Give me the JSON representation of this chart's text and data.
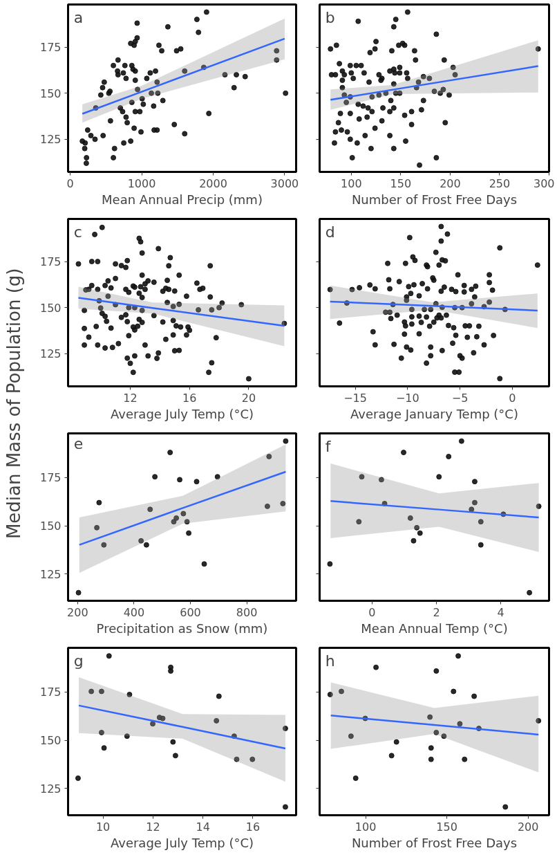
{
  "chart_data": [
    {
      "type": "scatter",
      "annotations": [
        "a"
      ],
      "xlabel": "Mean Annual Precip (mm)",
      "ylabel": "Median Mass of Population (g)",
      "xlim": [
        -30,
        3160
      ],
      "xticks": [
        0,
        1000,
        2000,
        3000
      ],
      "ylim": [
        107.3,
        198.1
      ],
      "yticks": [
        125,
        150,
        175
      ],
      "grid": false,
      "marker": "circle",
      "series": [
        {
          "color": "#111111",
          "x": [
            170,
            203,
            228,
            225,
            209,
            244,
            289,
            347,
            460,
            428,
            453,
            476,
            540,
            556,
            563,
            604,
            620,
            604,
            669,
            662,
            669,
            749,
            743,
            765,
            781,
            846,
            862,
            878,
            910,
            910,
            894,
            990,
            846,
            894,
            910,
            936,
            936,
            701,
            733,
            781,
            797,
            862,
            910,
            974,
            942,
            1006,
            1022,
            1071,
            1119,
            1135,
            1167,
            1174,
            1215,
            1193,
            1215,
            1241,
            1280,
            1225,
            1296,
            1366,
            1456,
            1488,
            1546,
            1601,
            1601,
            1772,
            1794,
            1907,
            1939,
            1868,
            2164,
            2292,
            2324,
            2447,
            2887,
            2887,
            3012,
            357
          ],
          "values": [
            124,
            120,
            115,
            112,
            123,
            130,
            127,
            125,
            127,
            149,
            153,
            156,
            150,
            151,
            135,
            115,
            120,
            165,
            168,
            162,
            160,
            123,
            161,
            165,
            158,
            124,
            165,
            163,
            162,
            157,
            131,
            129,
            177,
            176,
            178,
            180,
            188,
            142,
            140,
            137,
            134,
            145,
            140,
            140,
            152,
            147,
            144,
            158,
            161,
            150,
            143,
            130,
            130,
            162,
            156,
            176,
            173,
            150,
            146,
            186,
            133,
            173,
            174,
            128,
            162,
            190,
            183,
            194,
            139,
            164,
            160,
            153,
            160,
            159,
            173,
            168,
            150,
            142
          ]
        },
        {
          "type": "line",
          "marker": "none",
          "color": "#3366ff",
          "x": [
            170,
            1000,
            3000
          ],
          "values": [
            138.8,
            150.8,
            179.6
          ],
          "lower": [
            134,
            147,
            168.4
          ],
          "upper": [
            144,
            154,
            190.5
          ]
        }
      ]
    },
    {
      "type": "scatter",
      "annotations": [
        "b"
      ],
      "xlabel": "Number of Frost Free Days",
      "xlim": [
        68,
        300
      ],
      "xticks": [
        100,
        150,
        200,
        250,
        300
      ],
      "ylim": [
        107.3,
        198.1
      ],
      "yticks": [
        125,
        150,
        175
      ],
      "tick_labels": "x",
      "grid": false,
      "marker": "circle",
      "series": [
        {
          "color": "#111111",
          "x": [
            79,
            85,
            107,
            157,
            145,
            143,
            186,
            125,
            124,
            119,
            141,
            148,
            152,
            154,
            164,
            289,
            165,
            194,
            88,
            99,
            105,
            110,
            113,
            80,
            84,
            91,
            93,
            100,
            102,
            91,
            118,
            128,
            131,
            130,
            139,
            143,
            144,
            149,
            149,
            156,
            157,
            168,
            173,
            179,
            203,
            205,
            166,
            184,
            190,
            193,
            199,
            91,
            93,
            95,
            99,
            121,
            128,
            135,
            143,
            145,
            149,
            140,
            173,
            107,
            112,
            117,
            121,
            132,
            139,
            143,
            171,
            161,
            89,
            99,
            154,
            108,
            116,
            131,
            87,
            124,
            161,
            195,
            84,
            90,
            96,
            99,
            114,
            139,
            155,
            83,
            106,
            120,
            143,
            101,
            186,
            169
          ],
          "values": [
            174,
            176,
            189,
            194,
            190,
            186,
            182,
            178,
            174,
            172,
            173,
            176,
            177,
            176,
            173,
            174,
            168,
            168,
            166,
            165,
            165,
            165,
            161,
            160,
            160,
            162,
            160,
            161,
            158,
            157,
            156,
            160,
            158,
            157,
            162,
            163,
            161,
            164,
            161,
            161,
            158,
            156,
            159,
            158,
            164,
            160,
            153,
            151,
            150,
            152,
            149,
            153,
            149,
            145,
            148,
            148,
            149,
            150,
            155,
            150,
            150,
            146,
            146,
            144,
            143,
            142,
            140,
            142,
            140,
            142,
            141,
            140,
            139,
            139,
            138,
            136,
            137,
            135,
            134,
            131,
            133,
            134,
            129,
            130,
            129,
            125,
            127,
            127,
            124,
            123,
            123,
            120,
            120,
            115,
            115,
            111
          ]
        },
        {
          "type": "line",
          "marker": "none",
          "color": "#3366ff",
          "x": [
            79,
            142,
            289
          ],
          "values": [
            146.4,
            151.9,
            164.7
          ],
          "lower": [
            141,
            149.5,
            150.4
          ],
          "upper": [
            152,
            154.5,
            178.7
          ]
        }
      ]
    },
    {
      "type": "scatter",
      "annotations": [
        "c"
      ],
      "xlabel": "Average July Temp (°C)",
      "xlim": [
        7.8,
        23.2
      ],
      "xticks": [
        12,
        16,
        20
      ],
      "ylim": [
        107.3,
        198.1
      ],
      "yticks": [
        125,
        150,
        175
      ],
      "grid": false,
      "marker": "circle",
      "series": [
        {
          "color": "#111111",
          "x": [
            8.5,
            9.6,
            10.1,
            9.4,
            9.8,
            11,
            11.4,
            11.7,
            11.8,
            12.6,
            12.7,
            12.8,
            13.9,
            14.7,
            14.6,
            17.4,
            12.8,
            15.3,
            11,
            10.5,
            10.3,
            10.7,
            9.4,
            9.2,
            9,
            9.8,
            10.5,
            9.9,
            11.7,
            11.9,
            12.2,
            12.3,
            12.7,
            13,
            13.2,
            13.6,
            13,
            12.6,
            12.8,
            14.2,
            14.4,
            14.6,
            15,
            14.5,
            15.8,
            14.5,
            14.9,
            15.3,
            16.5,
            16.7,
            16.9,
            17.4,
            18.2,
            18,
            19.5,
            16.6,
            17.5,
            22.4,
            8.9,
            10,
            10.1,
            10.3,
            10.4,
            11,
            11.4,
            11.7,
            11.8,
            11.9,
            12.3,
            12.8,
            12.6,
            12.8,
            12.2,
            12.3,
            12.5,
            13.6,
            14.2,
            14.9,
            15.1,
            15.4,
            15.9,
            16,
            15.8,
            14.9,
            14.4,
            8.9,
            9.7,
            10.7,
            9.2,
            11.9,
            8.9,
            9.8,
            10.3,
            10.8,
            11.2,
            13,
            15,
            15.3,
            13.9,
            13.8,
            11.8,
            12.3,
            12,
            13.2,
            12.2,
            17.8,
            17.5,
            17.3,
            20
          ],
          "values": [
            173.7,
            189.7,
            193.5,
            175,
            175,
            173.7,
            172.8,
            171.8,
            175.5,
            187.6,
            185.7,
            179.6,
            182,
            177.1,
            172.7,
            172.7,
            167.6,
            167.6,
            165.8,
            164.5,
            162,
            160.7,
            162,
            159.9,
            159.6,
            159.9,
            156.2,
            153.7,
            159.9,
            158.3,
            161.7,
            161.1,
            161.3,
            162.9,
            164.5,
            163.8,
            159.9,
            157.8,
            155.5,
            158.9,
            160.5,
            159.9,
            159,
            164.8,
            156.2,
            152.8,
            150.6,
            151.8,
            163.3,
            159.9,
            160.5,
            155.8,
            152.5,
            150,
            151.6,
            148.8,
            148.8,
            141.4,
            148.5,
            149.8,
            146.9,
            145.3,
            142.6,
            151.6,
            144.7,
            146.1,
            142.4,
            150,
            150,
            148.5,
            143.6,
            142,
            139.5,
            137.9,
            139.9,
            145.7,
            142.2,
            143,
            140.1,
            139.5,
            139.5,
            137.7,
            135.2,
            135.2,
            132.8,
            138.7,
            139.8,
            138.9,
            134,
            134.8,
            129.7,
            129.7,
            128.1,
            128.4,
            130.5,
            129.7,
            126.6,
            126.8,
            125.4,
            122.5,
            122.6,
            123.8,
            119.8,
            123.8,
            114.9,
            133.7,
            120.1,
            114.9,
            111.4
          ]
        },
        {
          "type": "line",
          "marker": "none",
          "color": "#3366ff",
          "x": [
            8.5,
            13.5,
            22.4
          ],
          "values": [
            155.3,
            149.8,
            140.1
          ],
          "lower": [
            149.4,
            146.8,
            129.1
          ],
          "upper": [
            161.3,
            152.8,
            151.2
          ]
        }
      ]
    },
    {
      "type": "scatter",
      "annotations": [
        "d"
      ],
      "xlabel": "Average January Temp (°C)",
      "xlim": [
        -18.4,
        3.5
      ],
      "xticks": [
        -15,
        -10,
        -5,
        0
      ],
      "ylim": [
        107.3,
        198.1
      ],
      "yticks": [
        125,
        150,
        175
      ],
      "tick_labels": "x",
      "grid": false,
      "marker": "circle",
      "series": [
        {
          "color": "#111111",
          "x": [
            -17.4,
            -15.3,
            -14.6,
            -13.6,
            -13.1,
            -15.8,
            -16.5,
            -13.3,
            -13.1,
            -11.9,
            -11.8,
            -11.7,
            -10.8,
            -10.2,
            -9.8,
            -9.5,
            -9.3,
            -9.9,
            -9.4,
            -9.7,
            -10.1,
            -10.1,
            -8.9,
            -8.6,
            -8.2,
            -8.1,
            -8.1,
            -7.6,
            -7.5,
            -7.3,
            -7,
            -6.8,
            -6.8,
            -6.2,
            -6.7,
            -6.4,
            -6.5,
            -6.8,
            -5.8,
            -5.4,
            -5.2,
            -4.6,
            -4.6,
            -3.9,
            -3.5,
            -3.6,
            -2.2,
            -2.2,
            -1.9,
            -1.2,
            2.4,
            -11.4,
            -12.1,
            -11.7,
            -11.6,
            -11,
            -11.3,
            -10.3,
            -10.2,
            -10.3,
            -10.1,
            -9.7,
            -9.6,
            -9.6,
            -9.6,
            -8.9,
            -8.7,
            -8.9,
            -8.4,
            -8.2,
            -7.9,
            -7.8,
            -7.5,
            -7.3,
            -7,
            -7.2,
            -6.8,
            -6.3,
            -6.7,
            -6.1,
            -5.6,
            -5.4,
            -5.7,
            -5.5,
            -4.8,
            -4.5,
            -4.1,
            -4.3,
            -3.4,
            -3.2,
            -3.9,
            -2.7,
            -2.2,
            -2.7,
            -1.8,
            -0.7,
            -10.6,
            -8.2,
            -7.8,
            -7.8,
            -6.7,
            -5,
            -4.8,
            -3.7,
            -5.5,
            -5.1,
            -1.2
          ],
          "values": [
            159.8,
            159.8,
            160.8,
            162.3,
            160.2,
            152.5,
            141.6,
            136.9,
            129.8,
            174,
            165.1,
            160.2,
            164.1,
            174,
            188,
            177.5,
            175.6,
            161.4,
            162.4,
            157.7,
            155.8,
            154,
            156.4,
            163,
            173.1,
            172.2,
            160.2,
            166.1,
            164.9,
            180,
            173.1,
            194,
            186.1,
            189.9,
            175.9,
            175.4,
            161.1,
            158.9,
            159.9,
            158.7,
            167.8,
            162,
            158.5,
            159.9,
            161.6,
            155.8,
            167.8,
            163.6,
            159.5,
            182.4,
            173.1,
            151.7,
            147.5,
            147.5,
            144.1,
            145.9,
            130.1,
            142.2,
            140.1,
            135.6,
            128.6,
            127,
            149,
            145,
            141.1,
            145.4,
            142,
            135.8,
            149,
            144.9,
            139.9,
            149,
            142.1,
            152.1,
            145.9,
            144.4,
            144.4,
            145.9,
            150.2,
            140.3,
            139.1,
            135,
            130.7,
            150,
            150,
            140.1,
            140.1,
            133.9,
            134.2,
            139.9,
            152.1,
            150.5,
            153,
            129.8,
            134.9,
            149,
            122.6,
            119.9,
            128.6,
            123.9,
            126.7,
            123.9,
            122.6,
            125.5,
            115,
            115,
            111.5
          ]
        },
        {
          "type": "line",
          "marker": "none",
          "color": "#3366ff",
          "x": [
            -17.4,
            -7.6,
            2.4
          ],
          "values": [
            153.3,
            150.9,
            148.4
          ],
          "lower": [
            143.8,
            148.9,
            138.9
          ],
          "upper": [
            162,
            152.9,
            157.7
          ]
        }
      ]
    },
    {
      "type": "scatter",
      "annotations": [
        "e"
      ],
      "xlabel": "Precipitation as Snow (mm)",
      "xlim": [
        166,
        975
      ],
      "xticks": [
        200,
        400,
        600,
        800
      ],
      "ylim": [
        111.1,
        197.9
      ],
      "yticks": [
        125,
        150,
        175
      ],
      "grid": false,
      "marker": "circle",
      "series": [
        {
          "color": "#111111",
          "x": [
            203,
            268,
            276,
            293,
            425,
            444,
            457,
            474,
            528,
            541,
            550,
            562,
            575,
            588,
            594,
            622,
            649,
            696,
            873,
            879,
            928,
            938
          ],
          "values": [
            115.3,
            149,
            162,
            140.1,
            142.2,
            140.1,
            158.5,
            175.4,
            188,
            152.1,
            154,
            173.9,
            156.3,
            152.1,
            146.2,
            172.9,
            130.2,
            175.4,
            160.1,
            185.9,
            161.5,
            193.9
          ]
        },
        {
          "type": "line",
          "marker": "none",
          "color": "#3366ff",
          "x": [
            206,
            573,
            938
          ],
          "values": [
            140.1,
            159.2,
            178
          ],
          "lower": [
            125.5,
            151.1,
            157.5
          ],
          "upper": [
            154.3,
            165.5,
            192.2
          ]
        }
      ]
    },
    {
      "type": "scatter",
      "annotations": [
        "f"
      ],
      "xlabel": "Mean Annual Temp (°C)",
      "xlim": [
        -1.63,
        5.5
      ],
      "xticks": [
        0,
        2,
        4
      ],
      "ylim": [
        111.1,
        197.9
      ],
      "yticks": [
        125,
        150,
        175
      ],
      "tick_labels": "x",
      "grid": false,
      "marker": "circle",
      "series": [
        {
          "color": "#111111",
          "x": [
            -1.31,
            -0.41,
            -0.32,
            0.29,
            0.39,
            0.98,
            1.19,
            1.29,
            1.39,
            1.49,
            2.08,
            2.38,
            2.78,
            3.09,
            3.19,
            3.19,
            3.38,
            3.38,
            4.08,
            4.89,
            5.18
          ],
          "values": [
            130.2,
            152.1,
            175.4,
            173.9,
            161.5,
            188,
            154,
            142.2,
            149,
            146.2,
            175.4,
            185.9,
            193.9,
            158.5,
            172.9,
            162,
            152.1,
            140.1,
            156,
            115.3,
            160.1
          ]
        },
        {
          "type": "line",
          "marker": "none",
          "color": "#3366ff",
          "x": [
            -1.29,
            2.08,
            5.18
          ],
          "values": [
            162.8,
            158.4,
            154.3
          ],
          "lower": [
            143.6,
            149.5,
            136.4
          ],
          "upper": [
            182.3,
            166.8,
            172.2
          ]
        }
      ]
    },
    {
      "type": "scatter",
      "annotations": [
        "g"
      ],
      "xlabel": "Average July Temp (°C)",
      "xlim": [
        8.6,
        17.73
      ],
      "xticks": [
        10,
        12,
        14,
        16
      ],
      "ylim": [
        111.1,
        197.9
      ],
      "yticks": [
        125,
        150,
        175
      ],
      "grid": false,
      "marker": "circle",
      "series": [
        {
          "color": "#111111",
          "x": [
            9.0,
            9.53,
            9.94,
            10.24,
            9.94,
            10.04,
            10.96,
            11.06,
            11.99,
            12.26,
            12.39,
            12.71,
            12.71,
            12.8,
            12.9,
            14.54,
            14.64,
            15.25,
            15.35,
            15.98,
            17.3,
            17.3
          ],
          "values": [
            130.3,
            175.3,
            175.3,
            193.7,
            154,
            146,
            152.1,
            173.7,
            158.5,
            161.8,
            161.3,
            187.8,
            185.9,
            149.1,
            142,
            160.1,
            172.8,
            152.1,
            140.1,
            140.1,
            156.1,
            115.4
          ]
        },
        {
          "type": "line",
          "marker": "none",
          "color": "#3366ff",
          "x": [
            9.03,
            13.18,
            17.3
          ],
          "values": [
            168,
            156.9,
            145.7
          ],
          "lower": [
            153.7,
            150.8,
            128.5
          ],
          "upper": [
            182.7,
            163.6,
            163.1
          ]
        }
      ]
    },
    {
      "type": "scatter",
      "annotations": [
        "h"
      ],
      "xlabel": "Number of Frost Free Days",
      "xlim": [
        71.7,
        212.9
      ],
      "xticks": [
        100,
        150,
        200
      ],
      "ylim": [
        111.1,
        197.9
      ],
      "yticks": [
        125,
        150,
        175
      ],
      "tick_labels": "x",
      "grid": false,
      "marker": "circle",
      "series": [
        {
          "color": "#111111",
          "x": [
            78.2,
            85.1,
            91,
            93.9,
            99.8,
            106.4,
            116,
            119,
            139.6,
            140.3,
            140.3,
            143.5,
            143.5,
            148.2,
            154.1,
            157,
            158,
            160.9,
            166.8,
            169.7,
            186,
            206.4
          ],
          "values": [
            173.7,
            175.3,
            152.1,
            130.3,
            161.3,
            187.8,
            142,
            149.1,
            162,
            146,
            140.1,
            185.9,
            154,
            152.1,
            175.3,
            193.7,
            158.5,
            140.1,
            172.8,
            156.1,
            115.4,
            160.1
          ]
        },
        {
          "type": "line",
          "marker": "none",
          "color": "#3366ff",
          "x": [
            78.6,
            142.3,
            206.4
          ],
          "values": [
            162.8,
            157.9,
            152.9
          ],
          "lower": [
            145.5,
            153.2,
            133.3
          ],
          "upper": [
            180,
            166.7,
            173.1
          ]
        }
      ]
    }
  ]
}
